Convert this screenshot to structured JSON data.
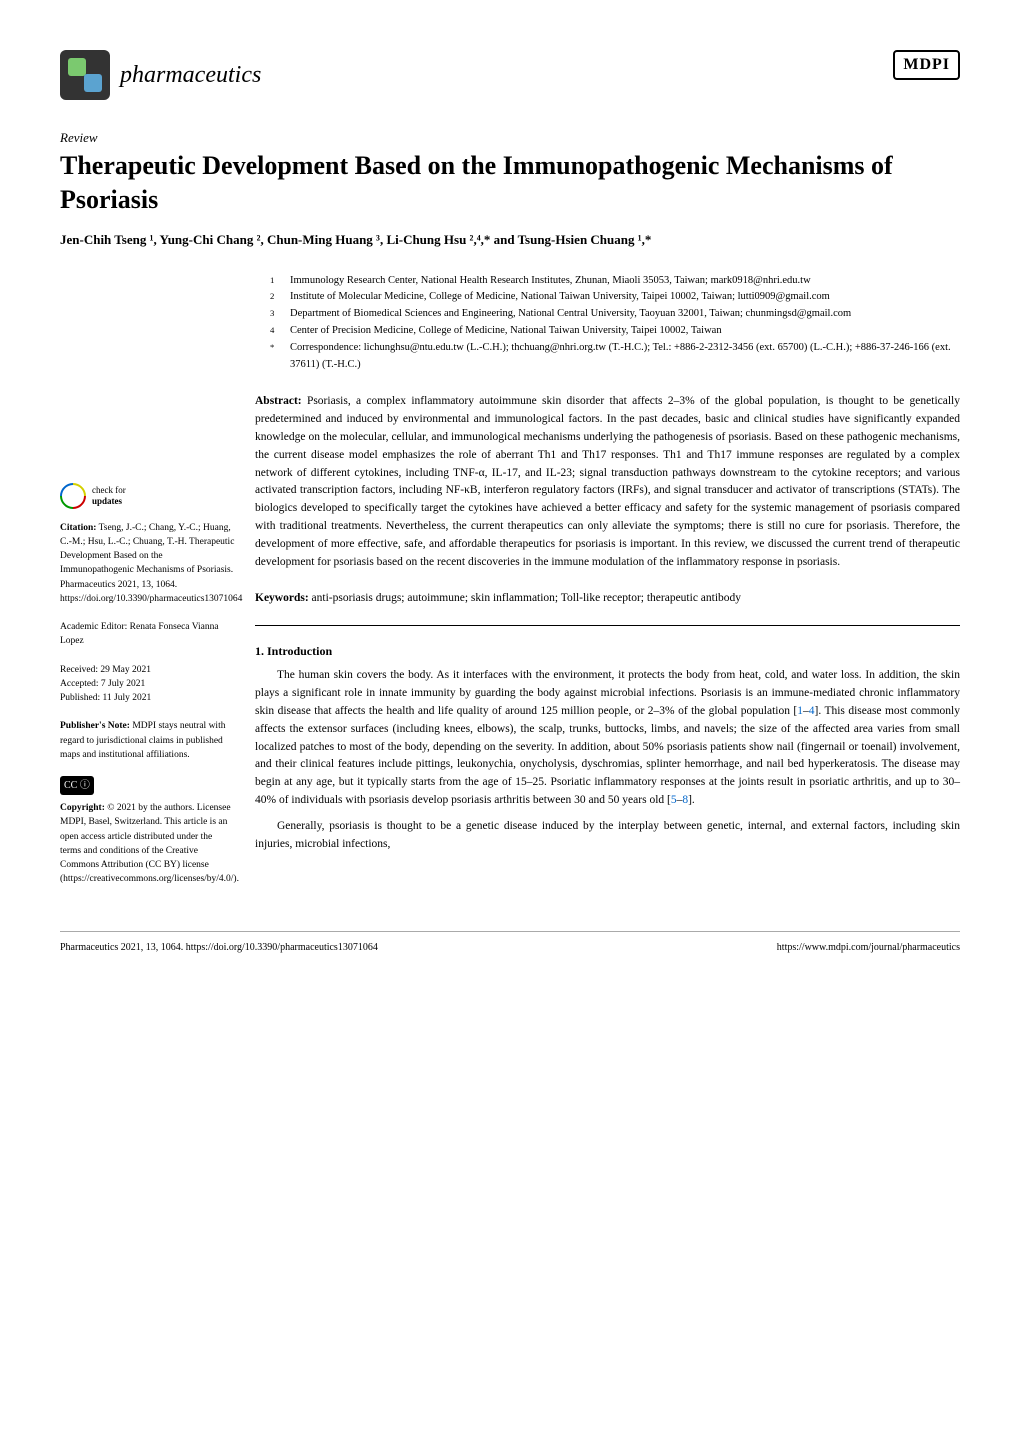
{
  "journal": {
    "name": "pharmaceutics",
    "publisher_logo": "MDPI"
  },
  "article": {
    "type": "Review",
    "title": "Therapeutic Development Based on the Immunopathogenic Mechanisms of Psoriasis",
    "authors": "Jen-Chih Tseng ¹, Yung-Chi Chang ², Chun-Ming Huang ³, Li-Chung Hsu ²,⁴,* and Tsung-Hsien Chuang ¹,*"
  },
  "affiliations": [
    {
      "num": "1",
      "text": "Immunology Research Center, National Health Research Institutes, Zhunan, Miaoli 35053, Taiwan; mark0918@nhri.edu.tw"
    },
    {
      "num": "2",
      "text": "Institute of Molecular Medicine, College of Medicine, National Taiwan University, Taipei 10002, Taiwan; lutti0909@gmail.com"
    },
    {
      "num": "3",
      "text": "Department of Biomedical Sciences and Engineering, National Central University, Taoyuan 32001, Taiwan; chunmingsd@gmail.com"
    },
    {
      "num": "4",
      "text": "Center of Precision Medicine, College of Medicine, National Taiwan University, Taipei 10002, Taiwan"
    },
    {
      "num": "*",
      "text": "Correspondence: lichunghsu@ntu.edu.tw (L.-C.H.); thchuang@nhri.org.tw (T.-H.C.); Tel.: +886-2-2312-3456 (ext. 65700) (L.-C.H.); +886-37-246-166 (ext. 37611) (T.-H.C.)"
    }
  ],
  "abstract": {
    "label": "Abstract:",
    "text": " Psoriasis, a complex inflammatory autoimmune skin disorder that affects 2–3% of the global population, is thought to be genetically predetermined and induced by environmental and immunological factors. In the past decades, basic and clinical studies have significantly expanded knowledge on the molecular, cellular, and immunological mechanisms underlying the pathogenesis of psoriasis. Based on these pathogenic mechanisms, the current disease model emphasizes the role of aberrant Th1 and Th17 responses. Th1 and Th17 immune responses are regulated by a complex network of different cytokines, including TNF-α, IL-17, and IL-23; signal transduction pathways downstream to the cytokine receptors; and various activated transcription factors, including NF-κB, interferon regulatory factors (IRFs), and signal transducer and activator of transcriptions (STATs). The biologics developed to specifically target the cytokines have achieved a better efficacy and safety for the systemic management of psoriasis compared with traditional treatments. Nevertheless, the current therapeutics can only alleviate the symptoms; there is still no cure for psoriasis. Therefore, the development of more effective, safe, and affordable therapeutics for psoriasis is important. In this review, we discussed the current trend of therapeutic development for psoriasis based on the recent discoveries in the immune modulation of the inflammatory response in psoriasis."
  },
  "keywords": {
    "label": "Keywords:",
    "text": " anti-psoriasis drugs; autoimmune; skin inflammation; Toll-like receptor; therapeutic antibody"
  },
  "section1": {
    "heading": "1. Introduction",
    "para1_a": "The human skin covers the body. As it interfaces with the environment, it protects the body from heat, cold, and water loss. In addition, the skin plays a significant role in innate immunity by guarding the body against microbial infections. Psoriasis is an immune-mediated chronic inflammatory skin disease that affects the health and life quality of around 125 million people, or 2–3% of the global population [",
    "ref1": "1",
    "dash1": "–",
    "ref2": "4",
    "para1_b": "]. This disease most commonly affects the extensor surfaces (including knees, elbows), the scalp, trunks, buttocks, limbs, and navels; the size of the affected area varies from small localized patches to most of the body, depending on the severity. In addition, about 50% psoriasis patients show nail (fingernail or toenail) involvement, and their clinical features include pittings, leukonychia, onycholysis, dyschromias, splinter hemorrhage, and nail bed hyperkeratosis. The disease may begin at any age, but it typically starts from the age of 15–25. Psoriatic inflammatory responses at the joints result in psoriatic arthritis, and up to 30–40% of individuals with psoriasis develop psoriasis arthritis between 30 and 50 years old [",
    "ref3": "5",
    "dash2": "–",
    "ref4": "8",
    "para1_c": "].",
    "para2": "Generally, psoriasis is thought to be a genetic disease induced by the interplay between genetic, internal, and external factors, including skin injuries, microbial infections,"
  },
  "sidebar": {
    "check_updates": "check for",
    "check_updates_bold": "updates",
    "citation_label": "Citation:",
    "citation": " Tseng, J.-C.; Chang, Y.-C.; Huang, C.-M.; Hsu, L.-C.; Chuang, T.-H. Therapeutic Development Based on the Immunopathogenic Mechanisms of Psoriasis. Pharmaceutics 2021, 13, 1064. https://doi.org/10.3390/pharmaceutics13071064",
    "editor_label": "Academic Editor: ",
    "editor": "Renata Fonseca Vianna Lopez",
    "received": "Received: 29 May 2021",
    "accepted": "Accepted: 7 July 2021",
    "published": "Published: 11 July 2021",
    "publisher_note_label": "Publisher's Note:",
    "publisher_note": " MDPI stays neutral with regard to jurisdictional claims in published maps and institutional affiliations.",
    "copyright_label": "Copyright:",
    "copyright": " © 2021 by the authors. Licensee MDPI, Basel, Switzerland. This article is an open access article distributed under the terms and conditions of the Creative Commons Attribution (CC BY) license (https://creativecommons.org/licenses/by/4.0/)."
  },
  "footer": {
    "left": "Pharmaceutics 2021, 13, 1064. https://doi.org/10.3390/pharmaceutics13071064",
    "right": "https://www.mdpi.com/journal/pharmaceutics"
  }
}
